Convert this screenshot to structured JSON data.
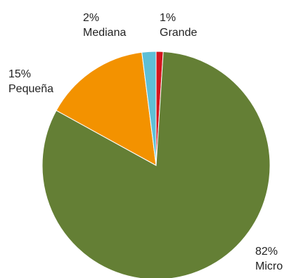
{
  "chart_data": {
    "type": "pie",
    "title": "",
    "slices": [
      {
        "label": "Micro",
        "percent_label": "82%",
        "value": 82,
        "color": "#647f35"
      },
      {
        "label": "Pequeña",
        "percent_label": "15%",
        "value": 15,
        "color": "#f39200"
      },
      {
        "label": "Mediana",
        "percent_label": "2%",
        "value": 2,
        "color": "#5ebfd6"
      },
      {
        "label": "Grande",
        "percent_label": "1%",
        "value": 1,
        "color": "#d4151d"
      }
    ],
    "start": "12 o'clock",
    "direction": "clockwise",
    "order_clockwise_from_top": [
      "Grande",
      "Micro",
      "Pequeña",
      "Mediana"
    ],
    "legend": "none",
    "data_labels": "outside slices, percent above category name"
  }
}
